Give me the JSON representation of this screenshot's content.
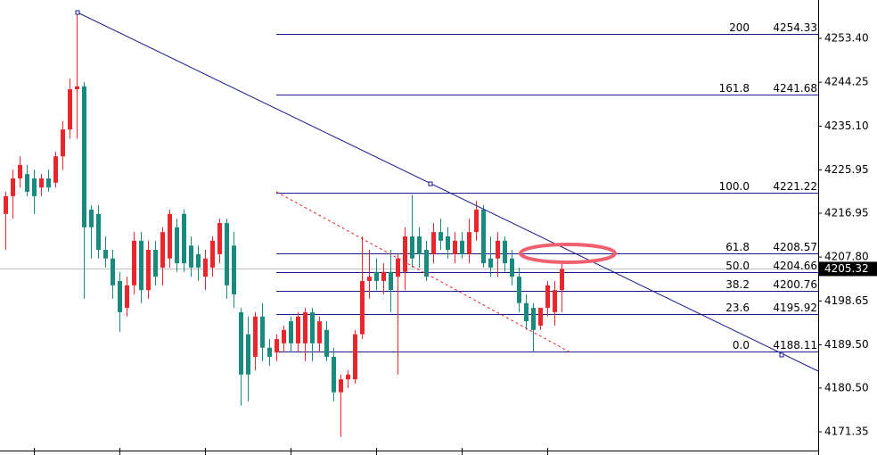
{
  "chart_data": {
    "type": "candlestick",
    "up_color": "#e8262c",
    "down_color": "#1b8a7e",
    "ylim": [
      4167.45,
      4261.4
    ],
    "yticks": [
      {
        "value": 4253.4,
        "label": "4253.40"
      },
      4244.25,
      {
        "value": 4235.1,
        "label": "4235.10"
      },
      4225.95,
      4216.95,
      {
        "value": 4207.8,
        "label": "4207.80"
      },
      4198.65,
      {
        "value": 4189.5,
        "label": "4189.50"
      },
      {
        "value": 4180.5,
        "label": "4180.50"
      },
      4171.35
    ],
    "last_price": 4205.32,
    "fib_levels": [
      {
        "level": "200",
        "price": 4254.33
      },
      {
        "level": "161.8",
        "price": 4241.68
      },
      {
        "level": "100.0",
        "price": 4221.22
      },
      {
        "level": "61.8",
        "price": 4208.57
      },
      {
        "level": "50.0",
        "price": 4204.66
      },
      {
        "level": "38.2",
        "price": 4200.76
      },
      {
        "level": "23.6",
        "price": 4195.92
      },
      {
        "level": "0.0",
        "price": 4188.11
      }
    ],
    "open": [
      4216.8,
      4220.5,
      4224.2,
      4225.1,
      4224.2,
      4222.3,
      4224.2,
      4223.3,
      4228.8,
      4234.4,
      4242.8,
      4243.4,
      4217.7,
      4216.8,
      4209.3,
      4207.5,
      4202.8,
      4197.2,
      4201.9,
      4211.2,
      4200.9,
      4209.3,
      4205.6,
      4207.5,
      4214.0,
      4216.8,
      4210.2,
      4208.4,
      4203.7,
      4205.6,
      4208.4,
      4214.9,
      4210.2,
      4196.3,
      4191.7,
      4187.0,
      4195.4,
      4188.9,
      4187.9,
      4189.8,
      4194.4,
      4189.8,
      4189.8,
      4196.3,
      4189.8,
      4192.6,
      4187.0,
      4179.6,
      4182.3,
      4182.3,
      4191.7,
      4202.8,
      4204.7,
      4202.8,
      4204.7,
      4203.7,
      4204.7,
      4212.1,
      4212.1,
      4209.3,
      4208.4,
      4213.0,
      4212.1,
      4208.4,
      4211.2,
      4208.4,
      4213.0,
      4217.7,
      4207.5,
      4207.5,
      4211.2,
      4207.5,
      4203.7,
      4198.2,
      4197.2,
      4193.5,
      4197.2,
      4196.3,
      4200.9
    ],
    "high": [
      4221.4,
      4226.0,
      4228.8,
      4227.0,
      4226.0,
      4225.1,
      4226.0,
      4229.7,
      4236.2,
      4245.0,
      4258.8,
      4244.3,
      4218.6,
      4218.6,
      4212.1,
      4209.3,
      4204.7,
      4203.7,
      4213.0,
      4213.0,
      4211.2,
      4211.2,
      4214.0,
      4217.7,
      4215.8,
      4217.7,
      4212.1,
      4210.2,
      4209.3,
      4212.1,
      4215.8,
      4215.8,
      4213.0,
      4197.2,
      4195.4,
      4196.3,
      4198.2,
      4190.7,
      4191.7,
      4193.5,
      4195.4,
      4196.3,
      4197.2,
      4197.2,
      4195.4,
      4194.4,
      4188.9,
      4183.3,
      4184.2,
      4192.6,
      4212.1,
      4209.3,
      4207.5,
      4206.5,
      4209.3,
      4208.4,
      4214.0,
      4220.8,
      4214.0,
      4211.2,
      4214.9,
      4215.8,
      4214.0,
      4213.0,
      4213.0,
      4215.8,
      4219.5,
      4218.6,
      4212.1,
      4213.0,
      4212.1,
      4209.3,
      4205.6,
      4200.0,
      4198.2,
      4197.2,
      4202.8,
      4202.8,
      4206.5
    ],
    "low": [
      4209.3,
      4215.8,
      4222.3,
      4220.5,
      4216.8,
      4220.5,
      4221.4,
      4222.3,
      4226.0,
      4232.5,
      4232.5,
      4199.1,
      4207.5,
      4207.5,
      4205.6,
      4199.1,
      4192.2,
      4195.4,
      4200.0,
      4198.2,
      4199.1,
      4201.9,
      4201.9,
      4205.6,
      4204.7,
      4204.7,
      4203.7,
      4202.8,
      4200.9,
      4203.7,
      4206.5,
      4199.1,
      4197.2,
      4176.8,
      4177.7,
      4184.2,
      4186.1,
      4185.1,
      4186.1,
      4187.9,
      4187.9,
      4187.9,
      4186.1,
      4186.1,
      4187.9,
      4186.1,
      4177.7,
      4170.3,
      4180.5,
      4181.4,
      4190.7,
      4199.1,
      4200.9,
      4200.0,
      4196.3,
      4183.3,
      4200.9,
      4205.6,
      4205.6,
      4202.8,
      4206.5,
      4209.3,
      4207.5,
      4206.5,
      4207.5,
      4206.5,
      4211.2,
      4205.6,
      4203.7,
      4203.7,
      4204.7,
      4201.9,
      4196.3,
      4192.6,
      4187.9,
      4192.6,
      4195.4,
      4193.5,
      4196.3
    ],
    "close": [
      4220.5,
      4224.2,
      4227.0,
      4221.4,
      4220.5,
      4224.2,
      4222.3,
      4228.8,
      4234.4,
      4242.8,
      4243.4,
      4214.0,
      4214.0,
      4209.3,
      4207.5,
      4201.9,
      4196.3,
      4201.9,
      4211.2,
      4200.9,
      4209.3,
      4203.7,
      4213.0,
      4216.8,
      4206.5,
      4206.5,
      4205.6,
      4205.6,
      4207.5,
      4211.2,
      4214.9,
      4201.9,
      4200.0,
      4183.3,
      4183.3,
      4195.4,
      4188.9,
      4187.0,
      4190.7,
      4192.6,
      4189.8,
      4195.4,
      4196.3,
      4189.8,
      4194.4,
      4187.0,
      4179.6,
      4182.3,
      4183.3,
      4191.7,
      4202.8,
      4203.7,
      4202.8,
      4204.7,
      4200.9,
      4207.5,
      4212.1,
      4207.5,
      4208.4,
      4203.7,
      4213.0,
      4211.2,
      4209.3,
      4211.2,
      4208.4,
      4213.0,
      4217.7,
      4206.5,
      4205.6,
      4211.2,
      4206.5,
      4203.7,
      4198.2,
      4194.4,
      4192.6,
      4197.2,
      4201.9,
      4200.9,
      4205.32
    ]
  }
}
